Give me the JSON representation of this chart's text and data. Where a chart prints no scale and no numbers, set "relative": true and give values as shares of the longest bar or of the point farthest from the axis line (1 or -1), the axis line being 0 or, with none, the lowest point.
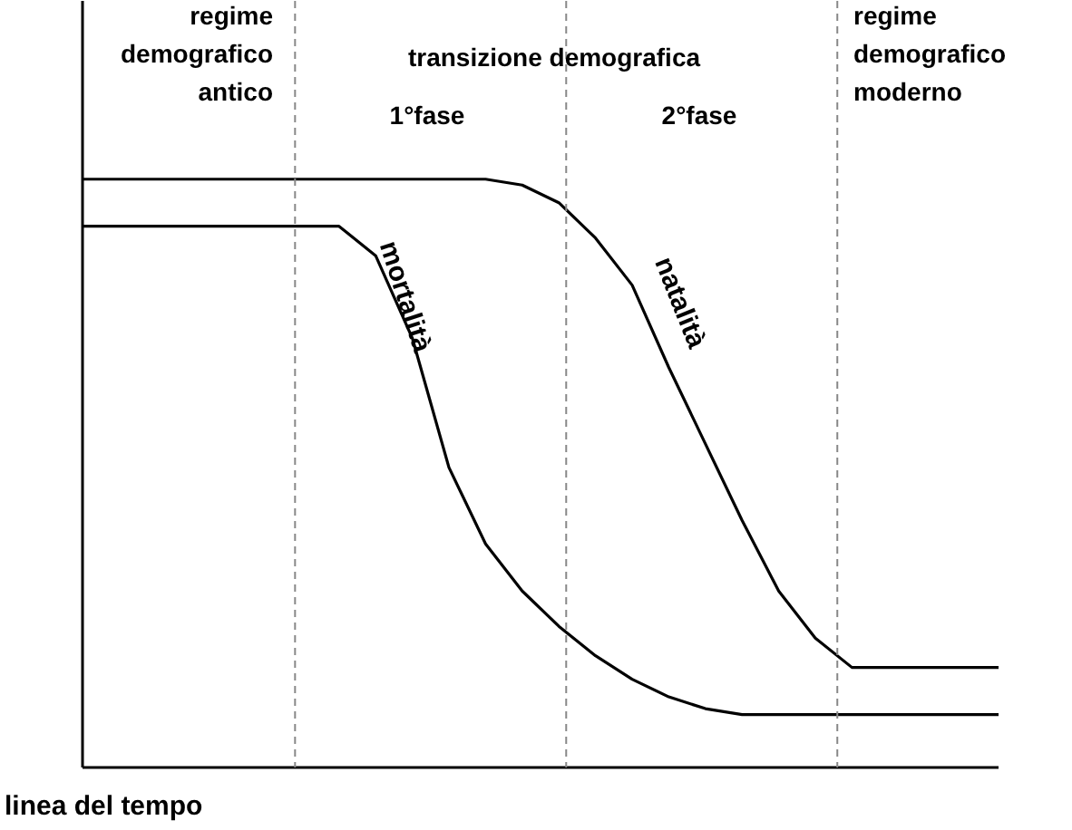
{
  "chart_data": {
    "type": "line",
    "relative": true,
    "xlabel": "linea del tempo",
    "categories": [
      null,
      null,
      null,
      null,
      null,
      null,
      null,
      null,
      null,
      null,
      null,
      null,
      null,
      null,
      null,
      null,
      null,
      null,
      null,
      null,
      null,
      null,
      null,
      null,
      null,
      null
    ],
    "series": [
      {
        "name": "natalità",
        "color": "#000000",
        "values": [
          1,
          1,
          1,
          1,
          1,
          1,
          1,
          1,
          1,
          1,
          1,
          1,
          0.99,
          0.96,
          0.9,
          0.82,
          0.68,
          0.55,
          0.42,
          0.3,
          0.22,
          0.17,
          0.17,
          0.17,
          0.17,
          0.17
        ]
      },
      {
        "name": "mortalità",
        "color": "#000000",
        "values": [
          0.92,
          0.92,
          0.92,
          0.92,
          0.92,
          0.92,
          0.92,
          0.92,
          0.87,
          0.73,
          0.51,
          0.38,
          0.3,
          0.24,
          0.19,
          0.15,
          0.12,
          0.1,
          0.09,
          0.09,
          0.09,
          0.09,
          0.09,
          0.09,
          0.09,
          0.09
        ]
      }
    ],
    "annotations": [
      "regime\ndemografico\nantico",
      "transizione demografica",
      "1°fase",
      "2°fase",
      "regime\ndemografico\nmoderno"
    ],
    "grid": false
  }
}
